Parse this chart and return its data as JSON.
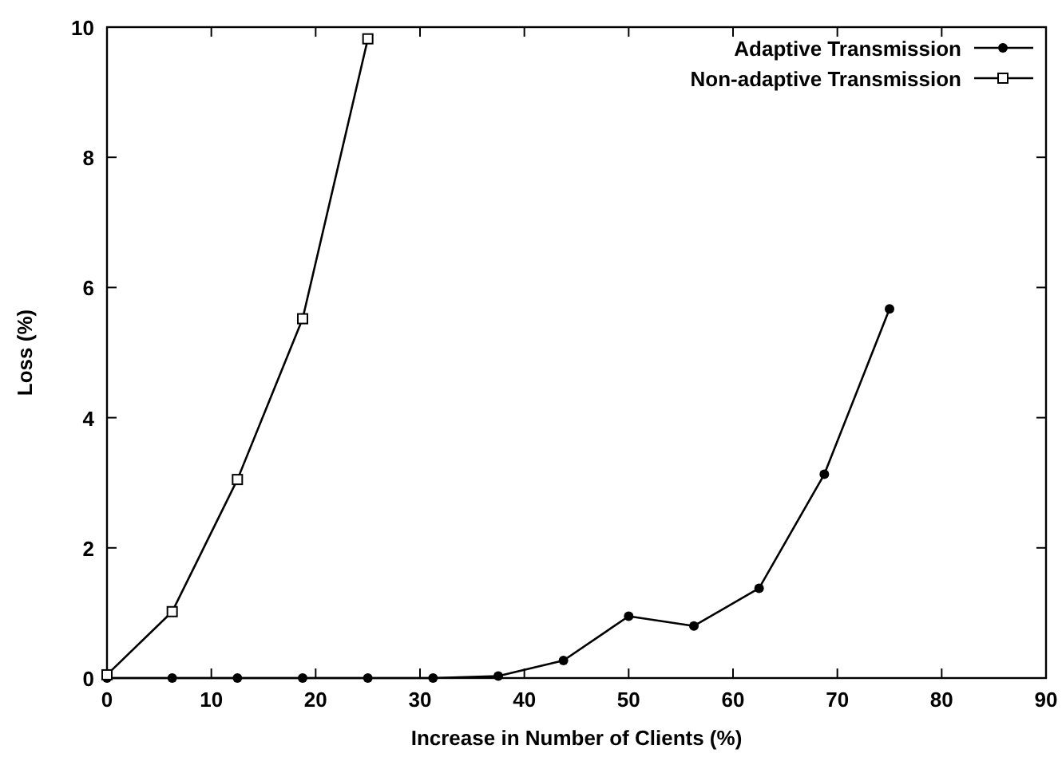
{
  "chart_data": {
    "type": "line",
    "xlabel": "Increase in Number of Clients (%)",
    "ylabel": "Loss (%)",
    "xlim": [
      0,
      90
    ],
    "xticks": [
      0,
      10,
      20,
      30,
      40,
      50,
      60,
      70,
      80,
      90
    ],
    "ylim": [
      0,
      10
    ],
    "yticks": [
      0,
      2,
      4,
      6,
      8,
      10
    ],
    "legend": "top right",
    "series": [
      {
        "name": "Adaptive Transmission",
        "color": "#000000",
        "marker": "circle",
        "x": [
          0,
          6.25,
          12.5,
          18.75,
          25,
          31.25,
          37.5,
          43.75,
          50,
          56.25,
          62.5,
          68.75,
          75
        ],
        "values": [
          0,
          0,
          0,
          0,
          0,
          0,
          0.03,
          0.27,
          0.95,
          0.8,
          1.38,
          3.13,
          5.67
        ]
      },
      {
        "name": "Non-adaptive Transmission",
        "color": "#000000",
        "marker": "square",
        "x": [
          0,
          6.25,
          12.5,
          18.75,
          25
        ],
        "values": [
          0.05,
          1.02,
          3.05,
          5.52,
          9.82
        ]
      }
    ]
  }
}
